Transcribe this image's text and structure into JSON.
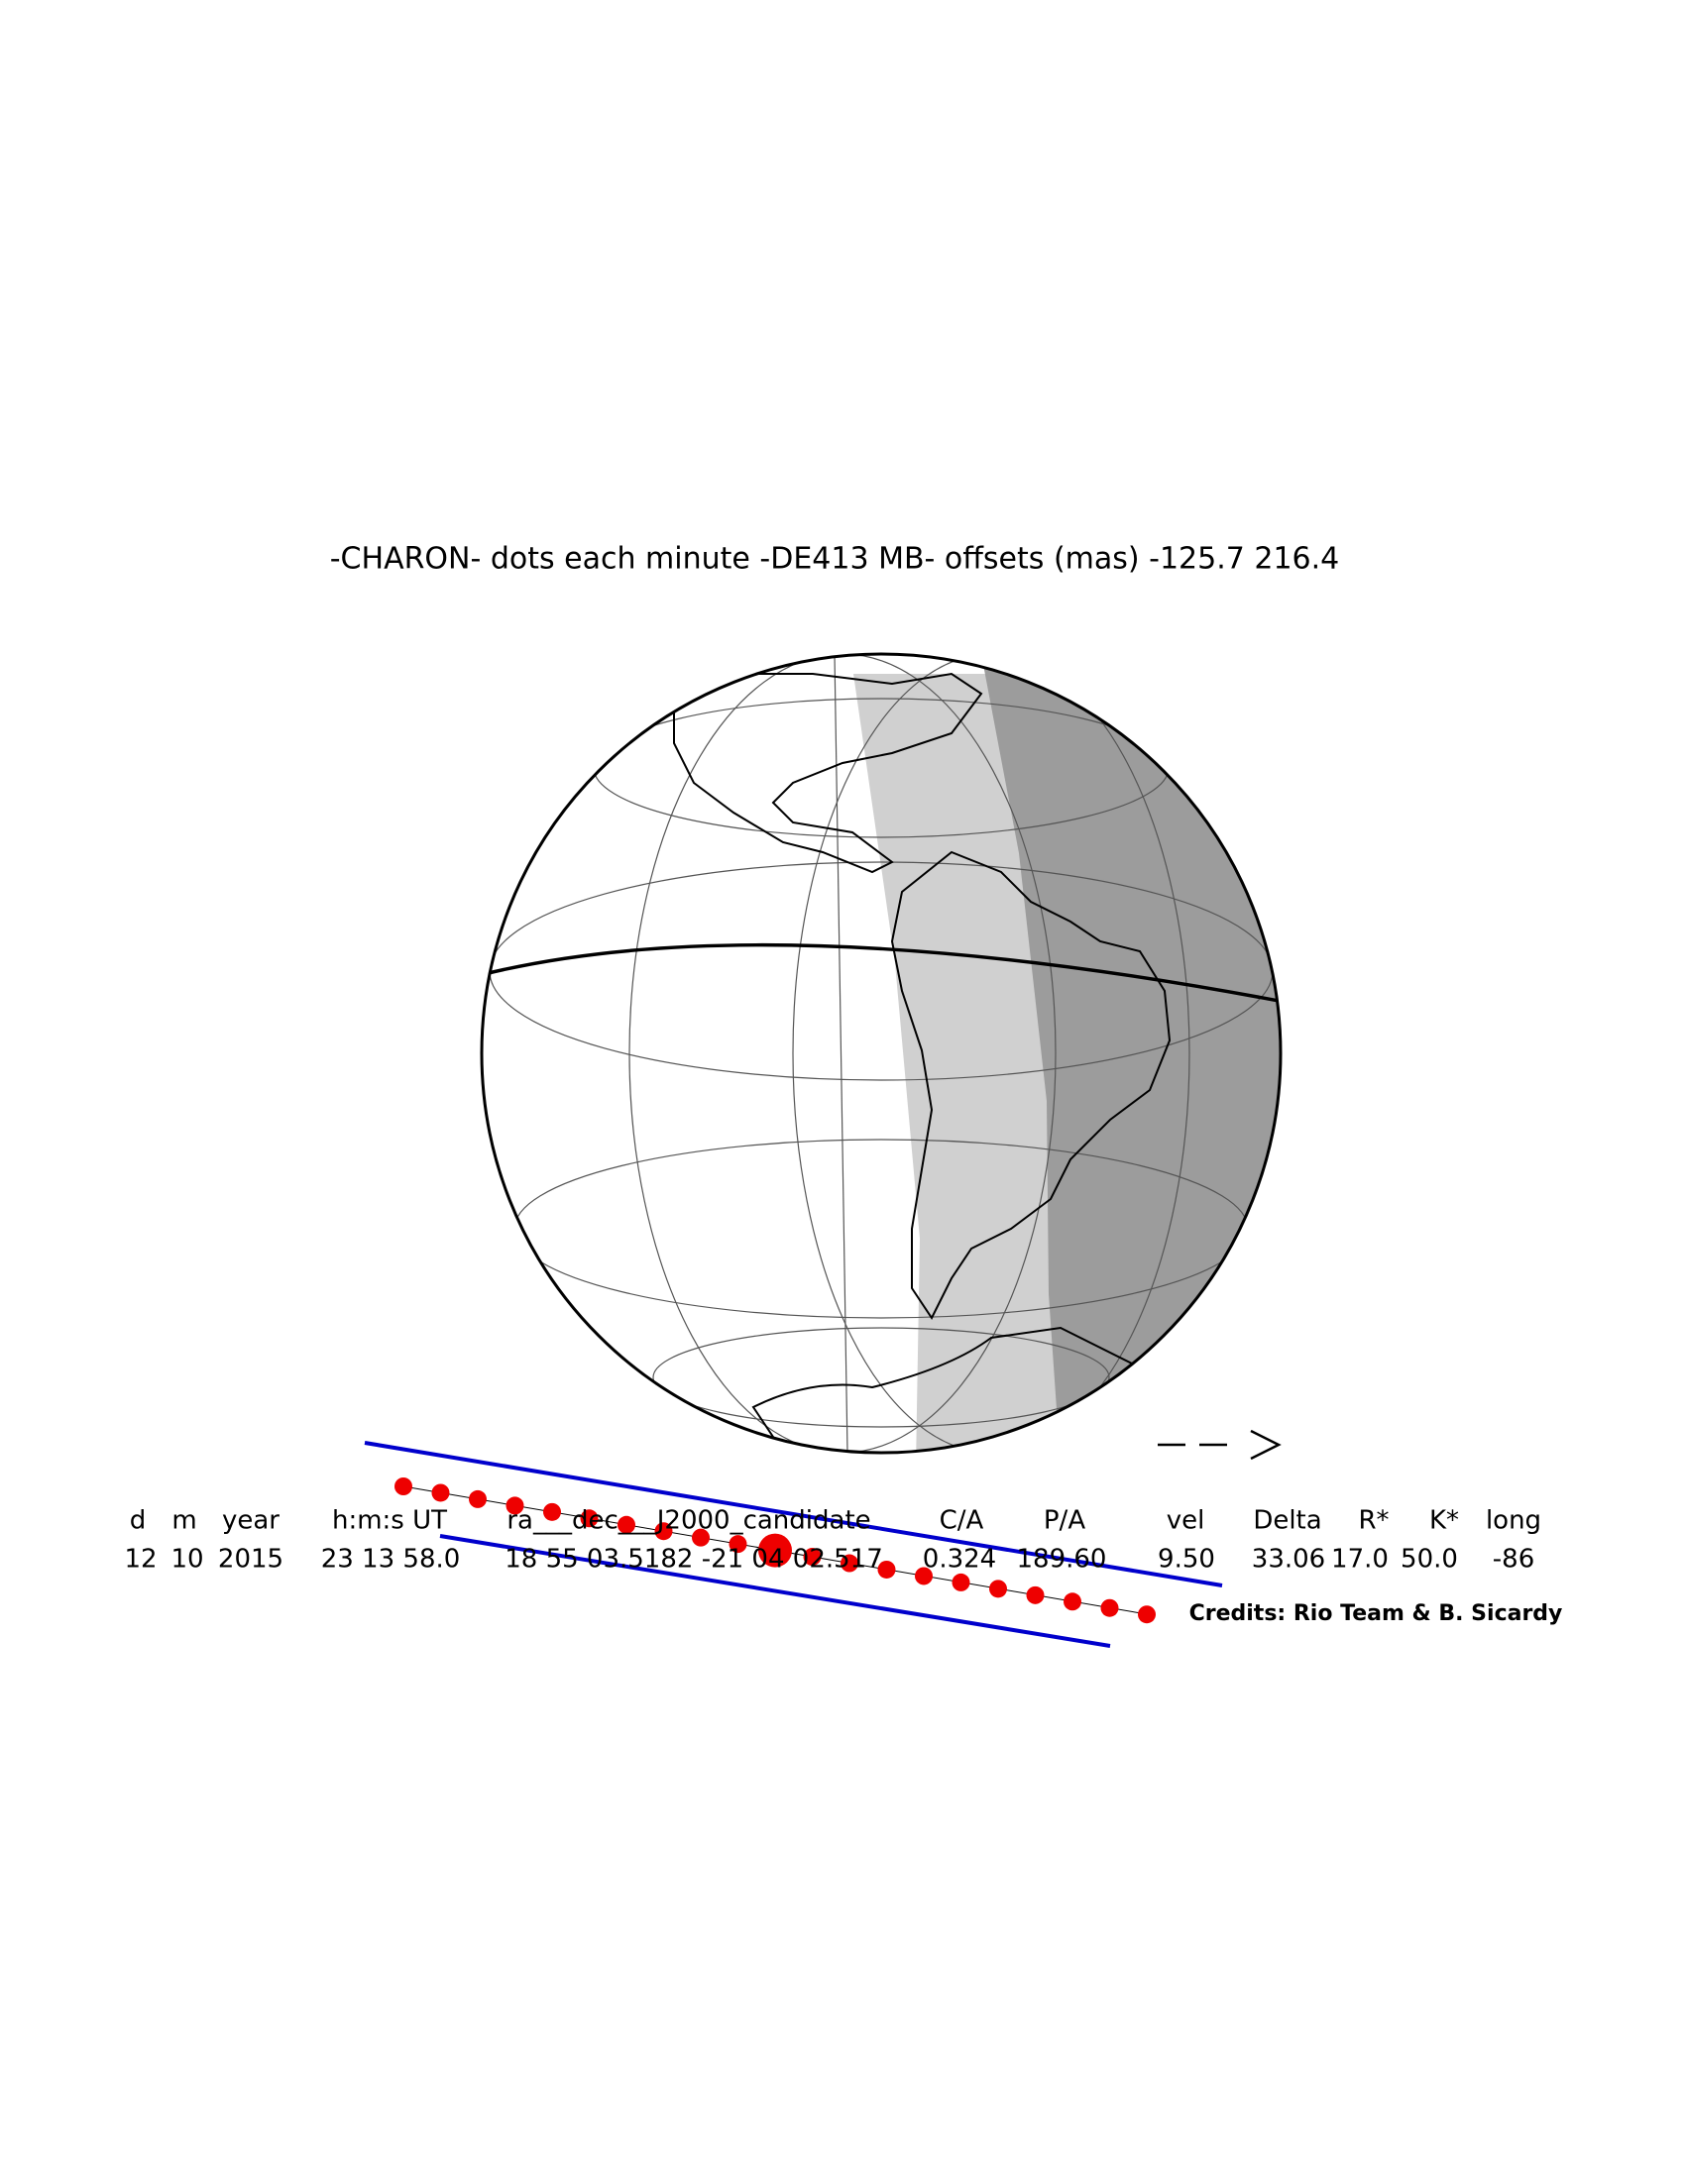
{
  "title": "-CHARON- dots each minute -DE413 MB- offsets (mas) -125.7  216.4",
  "table": {
    "headers": [
      "d",
      "m",
      "year",
      "h:m:s UT",
      "ra___dec___J2000_candidate",
      "C/A",
      "P/A",
      "vel",
      "Delta",
      "R*",
      "K*",
      "long"
    ],
    "values": [
      "12",
      "10",
      "2015",
      "23 13 58.0",
      "18 55 03.5182 -21 04 02.517",
      "0.324",
      "189.60",
      "9.50",
      "33.06",
      "17.0",
      "50.0",
      "-86"
    ]
  },
  "credits": "Credits: Rio Team & B. Sicardy"
}
